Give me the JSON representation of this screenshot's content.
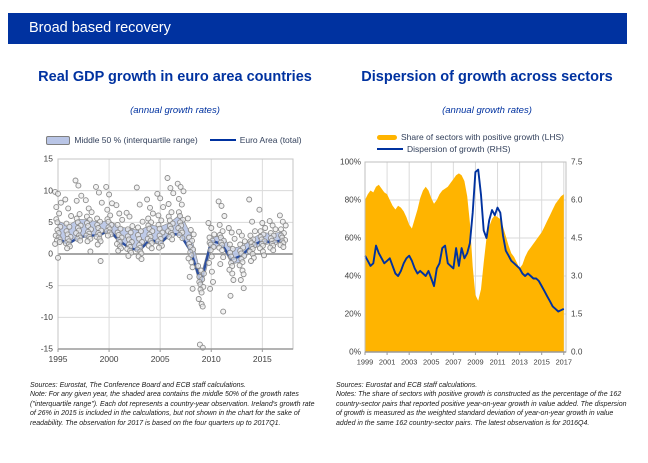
{
  "header": {
    "title": "Broad based recovery",
    "bg_color": "#0032A0",
    "text_color": "#FFFFFF"
  },
  "left_panel": {
    "title": "Real GDP growth in euro area countries",
    "subtitle": "(annual growth rates)",
    "legend": [
      {
        "label": "Middle 50 % (interquartile range)",
        "swatch": "band-swatch",
        "color": "#B9C5E6"
      },
      {
        "label": "Euro Area (total)",
        "swatch": "line-swatch",
        "color": "#0032A0"
      }
    ],
    "note_sources": "Sources: Eurostat, The Conference Board and ECB staff calculations.",
    "note_body": "Note: For any given year, the shaded area contains the middle 50% of the growth rates (\"interquartile range\"). Each dot represents a country-year observation. Ireland's growth rate of 26% in 2015 is included in the calculations, but not shown in the chart for the sake of readability. The observation for 2017 is based on the four quarters up to 2017Q1."
  },
  "right_panel": {
    "title": "Dispersion of growth across sectors",
    "subtitle": "(annual growth rates)",
    "legend": [
      {
        "label": "Share of sectors with positive growth (LHS)",
        "swatch": "area-swatch",
        "color": "#FFB400"
      },
      {
        "label": "Dispersion of growth (RHS)",
        "swatch": "line-swatch",
        "color": "#0032A0"
      }
    ],
    "note_sources": "Sources: Eurostat and ECB staff calculations.",
    "note_body": "Notes: The share of sectors with positive growth is constructed as the percentage of the 162 country-sector pairs that reported positive year-on-year growth in value added. The dispersion of growth is measured as the weighted standard deviation of year-on-year growth in value added in the same 162 country-sector pairs. The latest observation is for 2016Q4."
  },
  "chart_data": [
    {
      "type": "scatter",
      "title": "Real GDP growth in euro area countries",
      "subtitle": "(annual growth rates)",
      "xlim": [
        1995,
        2018
      ],
      "ylim": [
        -15,
        15
      ],
      "yticks": [
        15,
        10,
        5,
        0,
        -5,
        -10,
        -15
      ],
      "xticks": [
        1995,
        2000,
        2005,
        2010,
        2015
      ],
      "grid": true,
      "years": [
        1995,
        1996,
        1997,
        1998,
        1999,
        2000,
        2001,
        2002,
        2003,
        2004,
        2005,
        2006,
        2007,
        2008,
        2009,
        2010,
        2011,
        2012,
        2013,
        2014,
        2015,
        2016,
        2017
      ],
      "series": [
        {
          "name": "Euro Area (total)",
          "kind": "line",
          "color": "#2B4EA0",
          "values": [
            2.4,
            1.6,
            2.6,
            2.9,
            2.9,
            3.8,
            2.1,
            0.9,
            0.6,
            2.3,
            1.7,
            3.2,
            3.0,
            0.4,
            -4.5,
            2.1,
            1.6,
            -0.9,
            -0.2,
            1.3,
            2.1,
            1.8,
            2.2
          ]
        },
        {
          "name": "Middle 50 % (interquartile range)",
          "kind": "band",
          "color": "#B9C5E6",
          "lower": [
            2.0,
            1.5,
            2.4,
            2.9,
            2.8,
            3.5,
            1.8,
            1.0,
            0.6,
            1.8,
            1.5,
            2.9,
            3.2,
            0.3,
            -5.6,
            0.7,
            1.4,
            -1.6,
            -1.2,
            0.8,
            1.4,
            1.7,
            1.9
          ],
          "upper": [
            5.2,
            4.5,
            5.5,
            5.4,
            5.0,
            5.3,
            4.3,
            4.0,
            3.7,
            4.6,
            4.3,
            5.0,
            6.3,
            3.1,
            -3.3,
            2.5,
            3.0,
            0.9,
            1.2,
            2.4,
            3.4,
            3.2,
            3.5
          ]
        }
      ],
      "scatter_by_year": {
        "1995": [
          9.8,
          9.5,
          8.1,
          7.4,
          6.4,
          5.5,
          5.0,
          4.3,
          3.8,
          3.3,
          2.9,
          2.6,
          2.3,
          2.1,
          1.9,
          1.6,
          -0.6
        ],
        "1996": [
          8.6,
          7.2,
          6.0,
          4.8,
          4.3,
          3.6,
          3.1,
          2.7,
          2.4,
          2.0,
          1.7,
          1.5,
          1.2,
          0.9
        ],
        "1997": [
          11.6,
          10.8,
          9.2,
          8.4,
          6.3,
          5.6,
          5.0,
          4.5,
          4.1,
          3.7,
          3.3,
          2.9,
          2.6,
          2.4,
          2.1
        ],
        "1998": [
          8.5,
          7.2,
          6.6,
          5.9,
          5.4,
          4.9,
          4.4,
          3.9,
          3.5,
          3.2,
          2.9,
          2.7,
          2.4,
          2.0,
          0.4
        ],
        "1999": [
          10.6,
          9.7,
          8.1,
          5.6,
          5.1,
          4.6,
          4.1,
          3.7,
          3.3,
          3.0,
          2.7,
          2.4,
          2.0,
          1.5,
          -1.1
        ],
        "2000": [
          10.6,
          9.4,
          8.0,
          7.0,
          6.1,
          5.5,
          5.1,
          4.6,
          4.2,
          3.9,
          3.6,
          3.4,
          3.1,
          2.9
        ],
        "2001": [
          7.7,
          6.4,
          5.4,
          4.6,
          4.0,
          3.4,
          3.0,
          2.6,
          2.2,
          1.9,
          1.6,
          1.2,
          0.9,
          0.5
        ],
        "2002": [
          6.5,
          5.9,
          4.4,
          3.9,
          3.4,
          2.8,
          2.3,
          1.9,
          1.5,
          1.1,
          0.8,
          0.5,
          0.2,
          -0.3
        ],
        "2003": [
          10.5,
          7.8,
          5.1,
          4.2,
          3.6,
          3.0,
          2.4,
          1.9,
          1.4,
          1.0,
          0.7,
          0.4,
          0.1,
          -0.4,
          -0.8
        ],
        "2004": [
          8.6,
          7.3,
          6.4,
          5.6,
          5.0,
          4.5,
          4.0,
          3.6,
          3.1,
          2.7,
          2.4,
          2.1,
          1.7,
          1.3,
          0.9
        ],
        "2005": [
          9.5,
          8.8,
          7.4,
          6.1,
          5.3,
          4.6,
          4.0,
          3.4,
          2.9,
          2.4,
          2.0,
          1.7,
          1.3,
          1.0
        ],
        "2006": [
          12.0,
          10.4,
          9.6,
          7.9,
          6.6,
          5.9,
          5.3,
          4.8,
          4.4,
          4.0,
          3.6,
          3.3,
          3.0,
          2.7,
          2.3
        ],
        "2007": [
          11.1,
          10.6,
          9.9,
          8.7,
          7.8,
          6.6,
          6.0,
          5.4,
          5.0,
          4.5,
          4.1,
          3.7,
          3.4,
          3.0,
          2.5
        ],
        "2008": [
          5.6,
          3.8,
          3.1,
          2.6,
          2.1,
          1.6,
          1.1,
          0.7,
          0.3,
          -0.2,
          -0.7,
          -1.3,
          -2.1,
          -3.6,
          -5.5
        ],
        "2009": [
          -1.9,
          -2.6,
          -3.1,
          -3.6,
          -4.0,
          -4.4,
          -4.8,
          -5.2,
          -5.6,
          -6.1,
          -7.1,
          -7.9,
          -8.3,
          -14.3,
          -14.8
        ],
        "2010": [
          4.9,
          4.1,
          3.1,
          2.6,
          2.1,
          1.8,
          1.5,
          1.1,
          0.6,
          -0.4,
          -1.4,
          -2.8,
          -4.4,
          -5.5
        ],
        "2011": [
          8.3,
          7.6,
          6.0,
          4.6,
          3.6,
          3.0,
          2.6,
          2.1,
          1.8,
          1.4,
          1.0,
          0.6,
          -0.5,
          -1.6,
          -9.1
        ],
        "2012": [
          4.1,
          3.4,
          2.4,
          1.5,
          0.8,
          0.2,
          -0.4,
          -0.9,
          -1.4,
          -1.9,
          -2.5,
          -3.1,
          -4.1,
          -6.6
        ],
        "2013": [
          3.5,
          2.9,
          2.0,
          1.5,
          1.0,
          0.5,
          0.1,
          -0.3,
          -0.8,
          -1.3,
          -1.8,
          -2.6,
          -3.2,
          -4.1,
          -5.4
        ],
        "2014": [
          8.6,
          5.1,
          3.6,
          2.9,
          2.3,
          2.0,
          1.7,
          1.4,
          1.1,
          0.8,
          0.4,
          0.0,
          -0.6,
          -1.1
        ],
        "2015": [
          7.0,
          4.9,
          4.1,
          3.6,
          3.1,
          2.7,
          2.3,
          2.0,
          1.6,
          1.3,
          0.9,
          0.4,
          -0.2
        ],
        "2016": [
          5.2,
          4.5,
          3.9,
          3.3,
          2.9,
          2.5,
          2.1,
          1.8,
          1.6,
          1.3,
          1.0,
          0.6
        ],
        "2017": [
          6.1,
          5.1,
          4.5,
          3.9,
          3.3,
          2.9,
          2.6,
          2.2,
          2.0,
          1.7,
          1.4,
          1.1
        ]
      }
    },
    {
      "type": "area",
      "title": "Dispersion of growth across sectors",
      "subtitle": "(annual growth rates)",
      "x_start": 1999,
      "x_step": 0.25,
      "xlim": [
        1999,
        2017.2
      ],
      "lhs_lim": [
        0,
        100
      ],
      "rhs_lim": [
        0,
        7.5
      ],
      "lhs_ticks": [
        "0%",
        "20%",
        "40%",
        "60%",
        "80%",
        "100%"
      ],
      "rhs_ticks": [
        "0.0",
        "1.5",
        "3.0",
        "4.5",
        "6.0",
        "7.5"
      ],
      "xticks": [
        1999,
        2001,
        2003,
        2005,
        2007,
        2009,
        2011,
        2013,
        2015,
        2017
      ],
      "grid": true,
      "series": [
        {
          "name": "Share of sectors with positive growth (LHS)",
          "kind": "area",
          "axis": "LHS",
          "color": "#FFB400",
          "values": [
            80,
            83,
            85,
            84,
            87,
            88,
            86,
            84,
            83,
            80,
            77,
            75,
            77,
            76,
            74,
            71,
            67,
            65,
            70,
            75,
            81,
            85,
            87,
            85,
            81,
            78,
            80,
            83,
            85,
            86,
            87,
            89,
            91,
            93,
            94,
            93,
            90,
            82,
            68,
            45,
            30,
            27,
            33,
            47,
            60,
            66,
            70,
            72,
            71,
            70,
            66,
            61,
            56,
            52,
            50,
            47,
            44,
            46,
            50,
            53,
            55,
            57,
            59,
            61,
            63,
            66,
            69,
            72,
            75,
            78,
            80,
            82,
            83
          ]
        },
        {
          "name": "Dispersion of growth (RHS)",
          "kind": "line",
          "axis": "RHS",
          "color": "#0032A0",
          "values": [
            3.8,
            3.6,
            3.4,
            3.5,
            4.2,
            3.9,
            3.7,
            3.5,
            3.6,
            3.7,
            3.4,
            3.1,
            3.0,
            3.2,
            3.5,
            3.7,
            3.8,
            3.6,
            3.3,
            3.1,
            3.2,
            3.1,
            3.0,
            3.2,
            2.9,
            2.6,
            3.3,
            3.5,
            4.1,
            4.2,
            3.5,
            3.4,
            3.3,
            4.1,
            3.4,
            4.1,
            3.7,
            3.9,
            4.3,
            5.5,
            7.1,
            7.2,
            6.2,
            4.8,
            4.5,
            5.2,
            5.6,
            5.4,
            5.7,
            5.5,
            4.6,
            4.0,
            3.8,
            3.6,
            3.5,
            3.4,
            3.3,
            3.1,
            3.0,
            3.1,
            3.0,
            2.9,
            2.9,
            2.8,
            2.6,
            2.4,
            2.2,
            2.0,
            1.8,
            1.7,
            1.6,
            1.65,
            1.7
          ]
        }
      ]
    }
  ]
}
